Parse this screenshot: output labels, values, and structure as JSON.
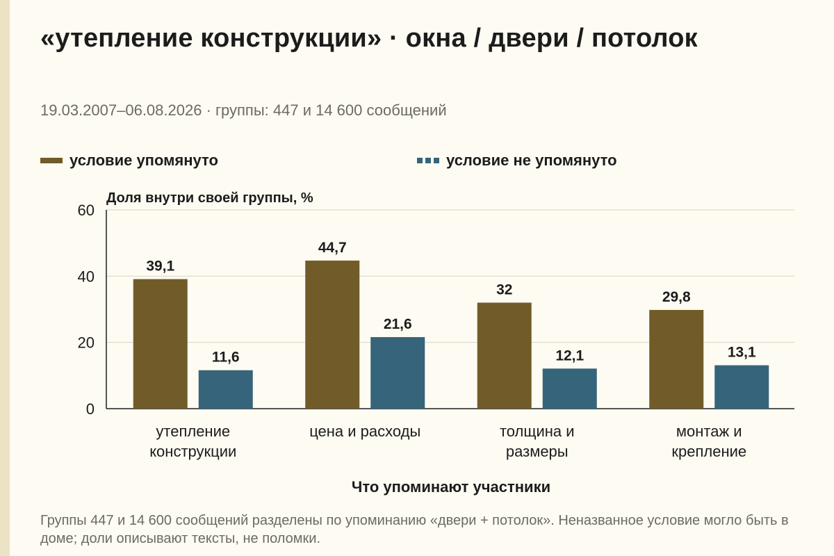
{
  "title": "«утепление конструкции» · окна / двери / потолок",
  "subtitle": "19.03.2007–06.08.2026 · группы: 447 и 14 600 сообщений",
  "legend": [
    {
      "label": "условие упомянуто",
      "color": "#715c29"
    },
    {
      "label": "условие не упомянуто",
      "color": "#36647a"
    }
  ],
  "footnote": "Группы 447 и 14 600 сообщений разделены по упоминанию «двери + потолок». Неназванное условие могло быть в доме; доли описывают тексты, не поломки.",
  "chart_data": {
    "type": "bar",
    "ylabel": "Доля внутри своей группы, %",
    "xlabel": "Что упоминают участники",
    "ylim": [
      0,
      60
    ],
    "yticks": [
      "0",
      "20",
      "40",
      "60"
    ],
    "ytick_values": [
      0,
      20,
      40,
      60
    ],
    "grid": true,
    "legend_position": "top",
    "categories": [
      [
        "утепление",
        "конструкции"
      ],
      [
        "цена и расходы"
      ],
      [
        "толщина и",
        "размеры"
      ],
      [
        "монтаж и",
        "крепление"
      ]
    ],
    "series": [
      {
        "name": "условие упомянуто",
        "color": "#715c29",
        "values": [
          39.1,
          44.7,
          32,
          29.8
        ],
        "labels": [
          "39,1",
          "44,7",
          "32",
          "29,8"
        ]
      },
      {
        "name": "условие не упомянуто",
        "color": "#36647a",
        "values": [
          11.6,
          21.6,
          12.1,
          13.1
        ],
        "labels": [
          "11,6",
          "21,6",
          "12,1",
          "13,1"
        ]
      }
    ]
  }
}
